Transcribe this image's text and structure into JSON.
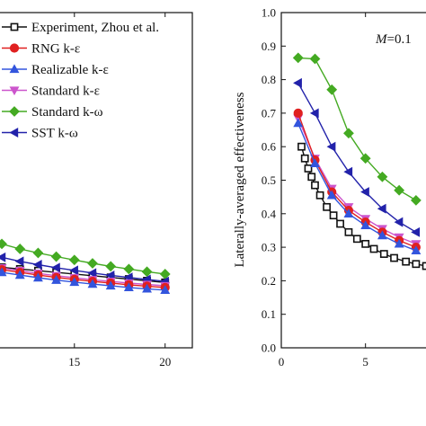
{
  "colors": {
    "experiment": "#111111",
    "rng": "#e02020",
    "realizable": "#3355dd",
    "standard_ke": "#cc55cc",
    "standard_kw": "#44aa22",
    "sst": "#2222aa"
  },
  "chart_data": [
    {
      "type": "line",
      "panel": "left",
      "xlabel": "",
      "ylabel": "",
      "xlim": [
        10.8,
        21.5
      ],
      "ylim": [
        0.0,
        1.0
      ],
      "xticks": [
        15,
        20
      ],
      "xtick_labels": [
        "15",
        "20"
      ],
      "legend": {
        "placement": "upper-left",
        "entries": [
          {
            "key": "experiment",
            "label": "Experiment, Zhou et al.",
            "marker": "square-open"
          },
          {
            "key": "rng",
            "label": "RNG k-ε",
            "marker": "circle"
          },
          {
            "key": "realizable",
            "label": "Realizable k-ε",
            "marker": "triangle-up"
          },
          {
            "key": "standard_ke",
            "label": "Standard  k-ε",
            "marker": "triangle-down"
          },
          {
            "key": "standard_kw",
            "label": "Standard  k-ω",
            "marker": "diamond"
          },
          {
            "key": "sst",
            "label": "SST  k-ω",
            "marker": "triangle-left"
          }
        ]
      },
      "series": [
        {
          "key": "experiment",
          "marker": "square-open",
          "x": [
            11,
            12,
            13,
            14,
            15,
            16,
            17,
            18,
            19,
            20
          ],
          "y": [
            0.24,
            0.235,
            0.23,
            0.225,
            0.22,
            0.215,
            0.21,
            0.205,
            0.2,
            0.195
          ]
        },
        {
          "key": "standard_kw",
          "marker": "diamond",
          "x": [
            11,
            12,
            13,
            14,
            15,
            16,
            17,
            18,
            19,
            20
          ],
          "y": [
            0.31,
            0.295,
            0.283,
            0.272,
            0.262,
            0.252,
            0.243,
            0.235,
            0.227,
            0.22
          ]
        },
        {
          "key": "sst",
          "marker": "triangle-left",
          "x": [
            11,
            12,
            13,
            14,
            15,
            16,
            17,
            18,
            19,
            20
          ],
          "y": [
            0.27,
            0.258,
            0.248,
            0.239,
            0.231,
            0.223,
            0.216,
            0.21,
            0.204,
            0.198
          ]
        },
        {
          "key": "standard_ke",
          "marker": "triangle-down",
          "x": [
            11,
            12,
            13,
            14,
            15,
            16,
            17,
            18,
            19,
            20
          ],
          "y": [
            0.238,
            0.23,
            0.222,
            0.215,
            0.209,
            0.203,
            0.198,
            0.193,
            0.189,
            0.185
          ]
        },
        {
          "key": "rng",
          "marker": "circle",
          "x": [
            11,
            12,
            13,
            14,
            15,
            16,
            17,
            18,
            19,
            20
          ],
          "y": [
            0.233,
            0.225,
            0.217,
            0.21,
            0.204,
            0.198,
            0.193,
            0.188,
            0.184,
            0.18
          ]
        },
        {
          "key": "realizable",
          "marker": "triangle-up",
          "x": [
            11,
            12,
            13,
            14,
            15,
            16,
            17,
            18,
            19,
            20
          ],
          "y": [
            0.225,
            0.217,
            0.209,
            0.202,
            0.196,
            0.19,
            0.185,
            0.18,
            0.176,
            0.172
          ]
        }
      ]
    },
    {
      "type": "line",
      "panel": "right",
      "xlabel": "",
      "ylabel": "Laterally-averaged  effectiveness",
      "xlim": [
        0,
        8.7
      ],
      "ylim": [
        0.0,
        1.0
      ],
      "xticks": [
        0,
        5
      ],
      "xtick_labels": [
        "0",
        "5"
      ],
      "yticks": [
        0.0,
        0.1,
        0.2,
        0.3,
        0.4,
        0.5,
        0.6,
        0.7,
        0.8,
        0.9,
        1.0
      ],
      "ytick_labels": [
        "0.0",
        "0.1",
        "0.2",
        "0.3",
        "0.4",
        "0.5",
        "0.6",
        "0.7",
        "0.8",
        "0.9",
        "1.0"
      ],
      "annotation": {
        "italic_part": "M",
        "rest": "=0.1"
      },
      "series": [
        {
          "key": "experiment",
          "marker": "square-open",
          "x": [
            1.2,
            1.4,
            1.6,
            1.8,
            2.0,
            2.3,
            2.7,
            3.1,
            3.5,
            4.0,
            4.5,
            5.0,
            5.5,
            6.1,
            6.7,
            7.4,
            8.0,
            8.6
          ],
          "y": [
            0.6,
            0.565,
            0.535,
            0.51,
            0.485,
            0.455,
            0.42,
            0.395,
            0.37,
            0.345,
            0.325,
            0.31,
            0.295,
            0.28,
            0.268,
            0.257,
            0.25,
            0.244
          ]
        },
        {
          "key": "standard_kw",
          "marker": "diamond",
          "x": [
            1,
            2,
            3,
            4,
            5,
            6,
            7,
            8
          ],
          "y": [
            0.865,
            0.862,
            0.77,
            0.64,
            0.565,
            0.51,
            0.47,
            0.44
          ]
        },
        {
          "key": "sst",
          "marker": "triangle-left",
          "x": [
            1,
            2,
            3,
            4,
            5,
            6,
            7,
            8
          ],
          "y": [
            0.79,
            0.7,
            0.6,
            0.525,
            0.465,
            0.415,
            0.375,
            0.345
          ]
        },
        {
          "key": "standard_ke",
          "marker": "triangle-down",
          "x": [
            1,
            2,
            3,
            4,
            5,
            6,
            7,
            8
          ],
          "y": [
            0.685,
            0.565,
            0.475,
            0.42,
            0.385,
            0.355,
            0.33,
            0.31
          ]
        },
        {
          "key": "rng",
          "marker": "circle",
          "x": [
            1,
            2,
            3,
            4,
            5,
            6,
            7,
            8
          ],
          "y": [
            0.7,
            0.56,
            0.465,
            0.41,
            0.375,
            0.345,
            0.32,
            0.3
          ]
        },
        {
          "key": "realizable",
          "marker": "triangle-up",
          "x": [
            1,
            2,
            3,
            4,
            5,
            6,
            7,
            8
          ],
          "y": [
            0.67,
            0.55,
            0.455,
            0.4,
            0.365,
            0.335,
            0.31,
            0.29
          ]
        }
      ]
    }
  ]
}
